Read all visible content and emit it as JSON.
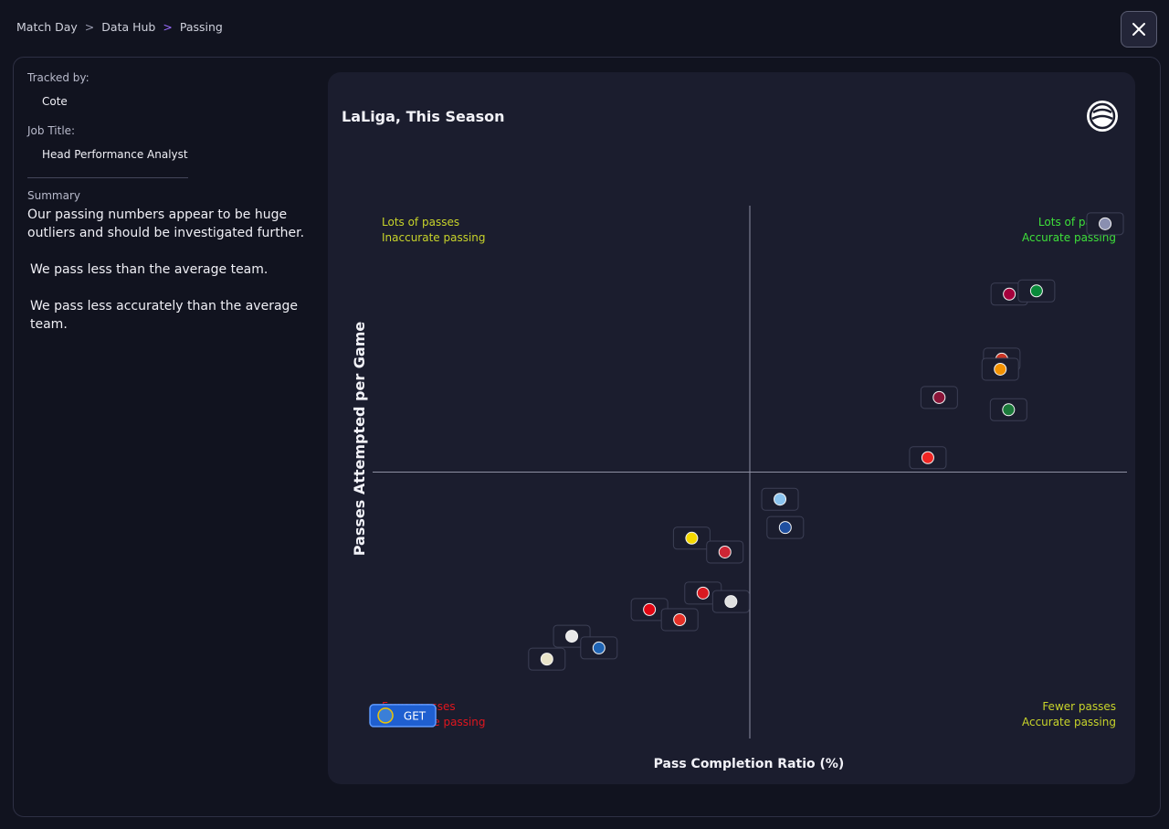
{
  "breadcrumb": [
    "Match Day",
    "Data Hub",
    "Passing"
  ],
  "sidebar": {
    "tracked_by_label": "Tracked by:",
    "tracked_by": "Cote",
    "job_title_label": "Job Title:",
    "job_title": "Head Performance Analyst",
    "summary_label": "Summary",
    "summary": [
      "Our passing numbers appear to be huge outliers and should be investigated further.",
      "We pass less than the average team.",
      "We pass less accurately than the average team."
    ]
  },
  "chart_data": {
    "type": "scatter",
    "title": "LaLiga, This Season",
    "x_label": "Pass Completion Ratio (%)",
    "y_label": "Passes Attempted per Game",
    "xlim": [
      0,
      100
    ],
    "ylim": [
      0,
      100
    ],
    "x_divider": 50,
    "y_divider": 50,
    "x": [
      97.1,
      84.4,
      88.0,
      83.4,
      83.2,
      75.1,
      84.3,
      73.6,
      54.0,
      54.7,
      42.3,
      46.7,
      43.8,
      47.5,
      36.7,
      40.7,
      26.4,
      30.0,
      23.1
    ],
    "y": [
      96.6,
      83.4,
      84.0,
      71.2,
      69.3,
      64.0,
      61.7,
      52.7,
      44.9,
      39.6,
      37.6,
      35.0,
      27.3,
      25.7,
      24.2,
      22.3,
      19.2,
      17.0,
      14.9
    ],
    "point_colors": [
      "#8a8fb0",
      "#a5003c",
      "#0a8a3a",
      "#cb3524",
      "#f39200",
      "#8a1538",
      "#1b7a3a",
      "#ee2523",
      "#8ac3ee",
      "#1f4fa0",
      "#f5d800",
      "#cd2534",
      "#d91a21",
      "#e0e0e0",
      "#e20613",
      "#e53027",
      "#e8e8e8",
      "#1f64b4",
      "#e8e3c8"
    ],
    "highlight": {
      "x": 4.0,
      "y": 4.3,
      "label": "GET",
      "color": "#1f5fd0"
    },
    "quadrants": [
      {
        "lines": [
          "Lots of passes",
          "Inaccurate passing"
        ],
        "color": "#c8d42a",
        "corner": "top-left"
      },
      {
        "lines": [
          "Lots of passes",
          "Accurate passing"
        ],
        "color": "#3ee03a",
        "corner": "top-right"
      },
      {
        "lines": [
          "Fewer passes",
          "Inaccurate passing"
        ],
        "color": "#e0161e",
        "corner": "bottom-left"
      },
      {
        "lines": [
          "Fewer passes",
          "Accurate passing"
        ],
        "color": "#c8d42a",
        "corner": "bottom-right"
      }
    ]
  }
}
